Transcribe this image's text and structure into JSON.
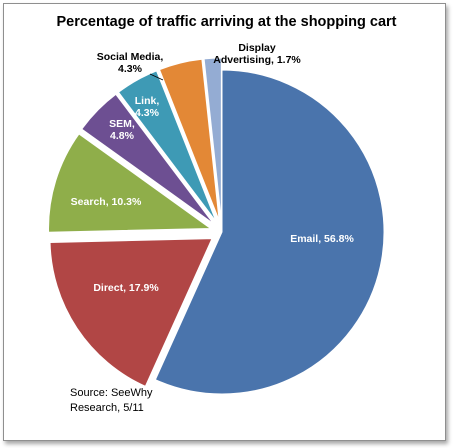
{
  "chart_data": {
    "type": "pie",
    "title": "Percentage of traffic arriving at the shopping cart",
    "slices": [
      {
        "label": "Email, 56.8%",
        "name": "Email",
        "value": 56.8,
        "color": "#4a74ac",
        "label_color": "#ffffff"
      },
      {
        "label": "Direct, 17.9%",
        "name": "Direct",
        "value": 17.9,
        "color": "#b14645",
        "label_color": "#ffffff"
      },
      {
        "label": "Search, 10.3%",
        "name": "Search",
        "value": 10.3,
        "color": "#8fae4a",
        "label_color": "#ffffff"
      },
      {
        "label": "SEM, 4.8%",
        "name": "SEM",
        "value": 4.8,
        "color": "#6d4f92",
        "label_color": "#ffffff"
      },
      {
        "label": "Link, 4.3%",
        "name": "Link",
        "value": 4.3,
        "color": "#3e9ab5",
        "label_color": "#ffffff"
      },
      {
        "label": "Social Media, 4.3%",
        "name": "Social Media",
        "value": 4.3,
        "color": "#e38836",
        "label_color": "#000000"
      },
      {
        "label": "Display Advertising, 1.7%",
        "name": "Display Advertising",
        "value": 1.7,
        "color": "#94acd3",
        "label_color": "#000000"
      }
    ],
    "exploded": true,
    "source_lines": [
      "Source: SeeWhy",
      "Research, 5/11"
    ]
  }
}
